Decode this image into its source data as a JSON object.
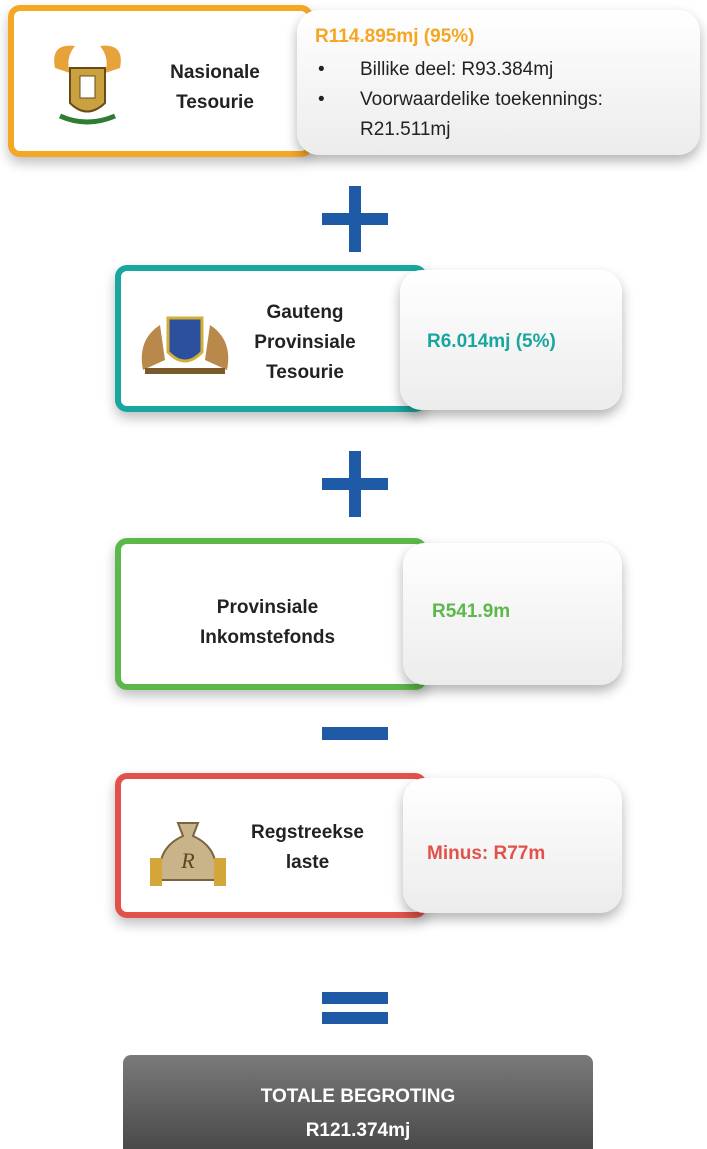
{
  "blocks": [
    {
      "label": [
        "Nasionale",
        "Tesourie"
      ],
      "value": "R114.895mj (95%)",
      "bullets": [
        "Billike deel: R93.384mj",
        "Voorwaardelike toekennings: R21.511mj"
      ]
    },
    {
      "label": [
        "Gauteng",
        "Provinsiale",
        "Tesourie"
      ],
      "value": "R6.014mj (5%)"
    },
    {
      "label": [
        "Provinsiale",
        "Inkomstefonds"
      ],
      "value": "R541.9m"
    },
    {
      "label": [
        "Regstreekse",
        "laste"
      ],
      "value": "Minus: R77m"
    }
  ],
  "total": {
    "title": "TOTALE BEGROTING",
    "value": "R121.374mj"
  }
}
